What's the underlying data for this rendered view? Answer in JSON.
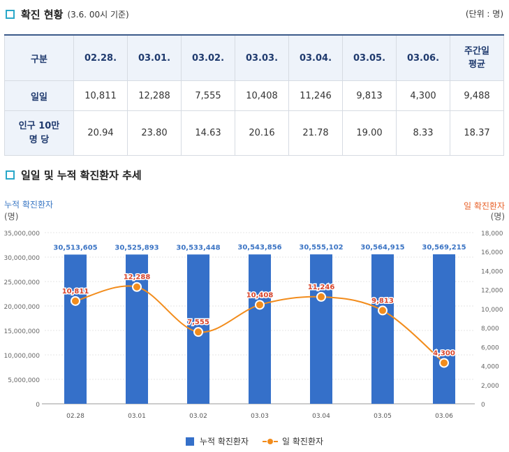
{
  "section1": {
    "title": "확진 현황",
    "subtitle": "(3.6. 00시 기준)",
    "unit": "(단위 : 명)"
  },
  "table": {
    "headers": [
      "구분",
      "02.28.",
      "03.01.",
      "03.02.",
      "03.03.",
      "03.04.",
      "03.05.",
      "03.06.",
      "주간일 평균"
    ],
    "rows": [
      {
        "label": "일일",
        "values": [
          "10,811",
          "12,288",
          "7,555",
          "10,408",
          "11,246",
          "9,813",
          "4,300",
          "9,488"
        ]
      },
      {
        "label": "인구 10만 명 당",
        "values": [
          "20.94",
          "23.80",
          "14.63",
          "20.16",
          "21.78",
          "19.00",
          "8.33",
          "18.37"
        ]
      }
    ]
  },
  "section2": {
    "title": "일일 및 누적 확진환자 추세"
  },
  "chart_data": {
    "type": "bar+line",
    "categories": [
      "02.28",
      "03.01",
      "03.02",
      "03.03",
      "03.04",
      "03.05",
      "03.06"
    ],
    "series": [
      {
        "name": "누적 확진환자",
        "type": "bar",
        "axis": "left",
        "values": [
          30513605,
          30525893,
          30533448,
          30543856,
          30555102,
          30564915,
          30569215
        ],
        "labels": [
          "30,513,605",
          "30,525,893",
          "30,533,448",
          "30,543,856",
          "30,555,102",
          "30,564,915",
          "30,569,215"
        ],
        "color": "#3570c9"
      },
      {
        "name": "일 확진환자",
        "type": "line",
        "axis": "right",
        "values": [
          10811,
          12288,
          7555,
          10408,
          11246,
          9813,
          4300
        ],
        "labels": [
          "10,811",
          "12,288",
          "7,555",
          "10,408",
          "11,246",
          "9,813",
          "4,300"
        ],
        "color": "#f28c1c"
      }
    ],
    "left_axis": {
      "title": "누적 확진환자",
      "unit": "(명)",
      "range": [
        0,
        35000000
      ],
      "ticks": [
        "0",
        "5,000,000",
        "10,000,000",
        "15,000,000",
        "20,000,000",
        "25,000,000",
        "30,000,000",
        "35,000,000"
      ]
    },
    "right_axis": {
      "title": "일 확진환자",
      "unit": "(명)",
      "range": [
        0,
        18000
      ],
      "ticks": [
        "0",
        "2,000",
        "4,000",
        "6,000",
        "8,000",
        "10,000",
        "12,000",
        "14,000",
        "16,000",
        "18,000"
      ]
    },
    "grid": true,
    "legend_position": "bottom"
  }
}
